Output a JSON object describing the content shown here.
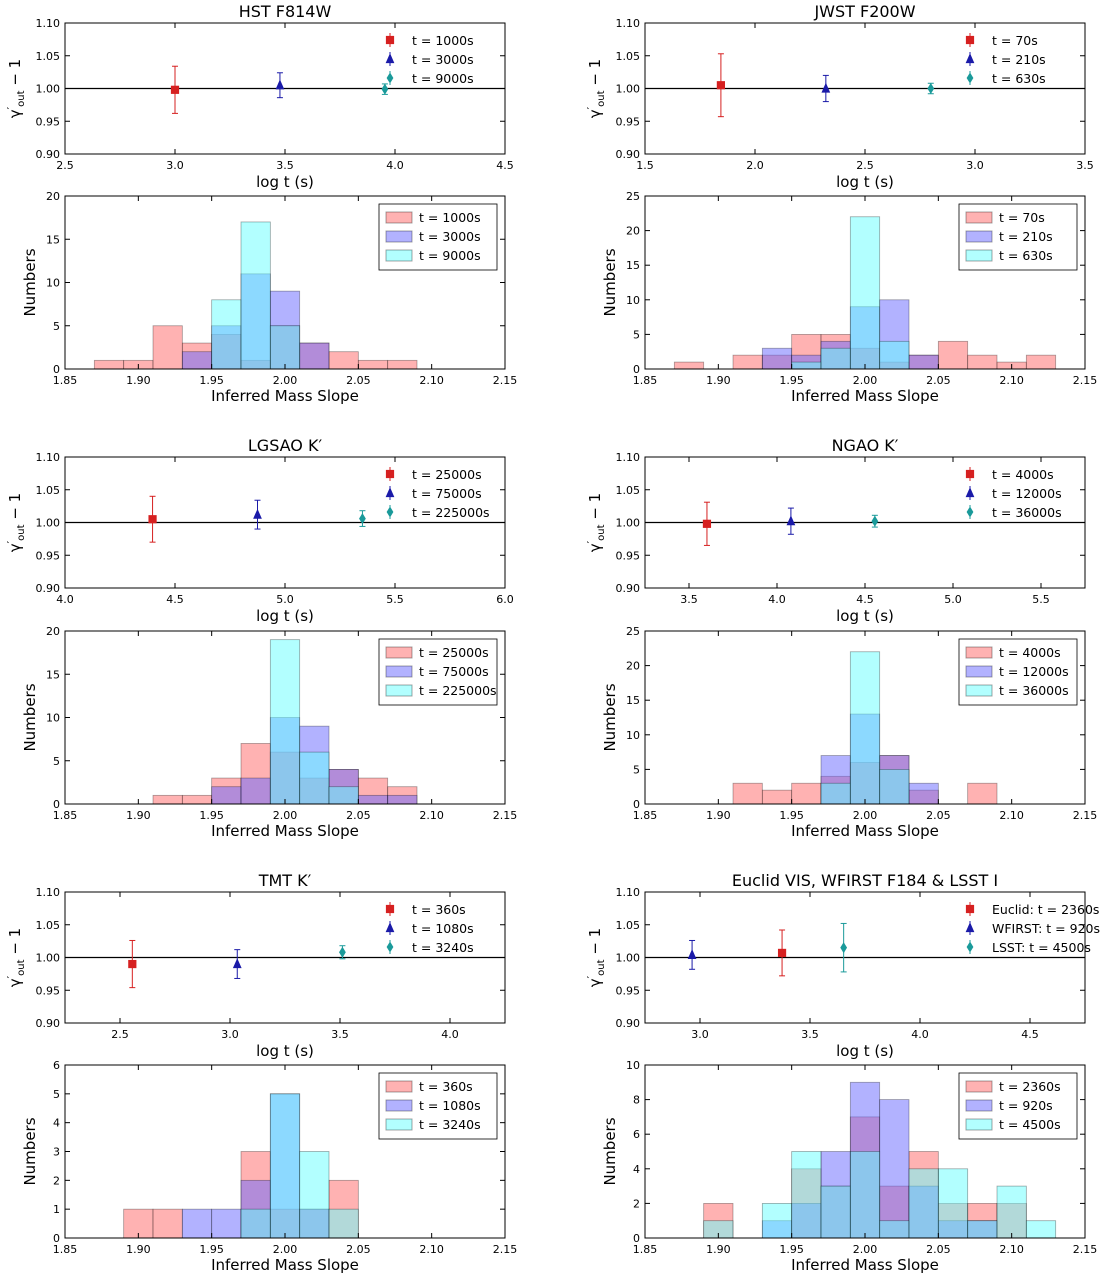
{
  "chart_data": [
    {
      "type": "scatter",
      "title": "HST F814W",
      "xlabel": "log t (s)",
      "ylabel": "γ′out − 1",
      "xlim": [
        2.5,
        4.5
      ],
      "ylim": [
        0.9,
        1.1
      ],
      "xticks": [
        "2.5",
        "3.0",
        "3.5",
        "4.0",
        "4.5"
      ],
      "yticks": [
        "0.90",
        "0.95",
        "1.00",
        "1.05",
        "1.10"
      ],
      "reference_line": 1.0,
      "legend_position": "top-right",
      "series": [
        {
          "label": "t = 1000s",
          "marker": "square",
          "color": "#d62020",
          "x": 3.0,
          "y": 0.998,
          "yerr": 0.036
        },
        {
          "label": "t = 3000s",
          "marker": "triangle",
          "color": "#1a1aa8",
          "x": 3.477,
          "y": 1.005,
          "yerr": 0.019
        },
        {
          "label": "t = 9000s",
          "marker": "diamond",
          "color": "#1a9a9a",
          "x": 3.954,
          "y": 0.999,
          "yerr": 0.008
        }
      ]
    },
    {
      "type": "scatter",
      "title": "JWST F200W",
      "xlabel": "log t (s)",
      "ylabel": "γ′out − 1",
      "xlim": [
        1.5,
        3.5
      ],
      "ylim": [
        0.9,
        1.1
      ],
      "xticks": [
        "1.5",
        "2.0",
        "2.5",
        "3.0",
        "3.5"
      ],
      "yticks": [
        "0.90",
        "0.95",
        "1.00",
        "1.05",
        "1.10"
      ],
      "reference_line": 1.0,
      "legend_position": "top-right",
      "series": [
        {
          "label": "t = 70s",
          "marker": "square",
          "color": "#d62020",
          "x": 1.845,
          "y": 1.005,
          "yerr": 0.048
        },
        {
          "label": "t = 210s",
          "marker": "triangle",
          "color": "#1a1aa8",
          "x": 2.322,
          "y": 1.0,
          "yerr": 0.02
        },
        {
          "label": "t = 630s",
          "marker": "diamond",
          "color": "#1a9a9a",
          "x": 2.799,
          "y": 1.0,
          "yerr": 0.008
        }
      ]
    },
    {
      "type": "bar",
      "xlabel": "Inferred Mass Slope",
      "ylabel": "Numbers",
      "xlim": [
        1.85,
        2.15
      ],
      "ylim": [
        0,
        20
      ],
      "xticks": [
        "1.85",
        "1.90",
        "1.95",
        "2.00",
        "2.05",
        "2.10",
        "2.15"
      ],
      "yticks": [
        "0",
        "5",
        "10",
        "15",
        "20"
      ],
      "bin_edges": [
        1.85,
        1.87,
        1.89,
        1.91,
        1.93,
        1.95,
        1.97,
        1.99,
        2.01,
        2.03,
        2.05,
        2.07,
        2.09,
        2.11,
        2.13,
        2.15
      ],
      "legend_position": "top-right",
      "series": [
        {
          "name": "t = 1000s",
          "color": "#ff6666",
          "values": [
            0,
            1,
            1,
            5,
            3,
            4,
            1,
            5,
            3,
            2,
            1,
            1,
            0,
            0,
            0
          ]
        },
        {
          "name": "t = 3000s",
          "color": "#6666ff",
          "values": [
            0,
            0,
            0,
            0,
            2,
            5,
            11,
            9,
            3,
            0,
            0,
            0,
            0,
            0,
            0
          ]
        },
        {
          "name": "t = 9000s",
          "color": "#66ffff",
          "values": [
            0,
            0,
            0,
            0,
            0,
            8,
            17,
            5,
            0,
            0,
            0,
            0,
            0,
            0,
            0
          ]
        }
      ]
    },
    {
      "type": "bar",
      "xlabel": "Inferred Mass Slope",
      "ylabel": "Numbers",
      "xlim": [
        1.85,
        2.15
      ],
      "ylim": [
        0,
        25
      ],
      "xticks": [
        "1.85",
        "1.90",
        "1.95",
        "2.00",
        "2.05",
        "2.10",
        "2.15"
      ],
      "yticks": [
        "0",
        "5",
        "10",
        "15",
        "20",
        "25"
      ],
      "bin_edges": [
        1.85,
        1.87,
        1.89,
        1.91,
        1.93,
        1.95,
        1.97,
        1.99,
        2.01,
        2.03,
        2.05,
        2.07,
        2.09,
        2.11,
        2.13,
        2.15
      ],
      "legend_position": "top-right",
      "series": [
        {
          "name": "t = 70s",
          "color": "#ff6666",
          "values": [
            0,
            1,
            0,
            2,
            2,
            5,
            5,
            3,
            1,
            2,
            4,
            2,
            1,
            2,
            0
          ]
        },
        {
          "name": "t = 210s",
          "color": "#6666ff",
          "values": [
            0,
            0,
            0,
            0,
            3,
            2,
            4,
            9,
            10,
            2,
            0,
            0,
            0,
            0,
            0
          ]
        },
        {
          "name": "t = 630s",
          "color": "#66ffff",
          "values": [
            0,
            0,
            0,
            0,
            0,
            1,
            3,
            22,
            4,
            0,
            0,
            0,
            0,
            0,
            0
          ]
        }
      ]
    },
    {
      "type": "scatter",
      "title": "LGSAO K′",
      "xlabel": "log t (s)",
      "ylabel": "γ′out − 1",
      "xlim": [
        4.0,
        6.0
      ],
      "ylim": [
        0.9,
        1.1
      ],
      "xticks": [
        "4.0",
        "4.5",
        "5.0",
        "5.5",
        "6.0"
      ],
      "yticks": [
        "0.90",
        "0.95",
        "1.00",
        "1.05",
        "1.10"
      ],
      "reference_line": 1.0,
      "legend_position": "top-right",
      "series": [
        {
          "label": "t = 25000s",
          "marker": "square",
          "color": "#d62020",
          "x": 4.398,
          "y": 1.005,
          "yerr": 0.035
        },
        {
          "label": "t = 75000s",
          "marker": "triangle",
          "color": "#1a1aa8",
          "x": 4.875,
          "y": 1.012,
          "yerr": 0.022
        },
        {
          "label": "t = 225000s",
          "marker": "diamond",
          "color": "#1a9a9a",
          "x": 5.352,
          "y": 1.006,
          "yerr": 0.012
        }
      ]
    },
    {
      "type": "scatter",
      "title": "NGAO K′",
      "xlabel": "log t (s)",
      "ylabel": "γ′out − 1",
      "xlim": [
        3.25,
        5.75
      ],
      "ylim": [
        0.9,
        1.1
      ],
      "xticks": [
        "3.5",
        "4.0",
        "4.5",
        "5.0",
        "5.5"
      ],
      "yticks": [
        "0.90",
        "0.95",
        "1.00",
        "1.05",
        "1.10"
      ],
      "reference_line": 1.0,
      "legend_position": "top-right",
      "series": [
        {
          "label": "t = 4000s",
          "marker": "square",
          "color": "#d62020",
          "x": 3.602,
          "y": 0.998,
          "yerr": 0.033
        },
        {
          "label": "t = 12000s",
          "marker": "triangle",
          "color": "#1a1aa8",
          "x": 4.079,
          "y": 1.002,
          "yerr": 0.02
        },
        {
          "label": "t = 36000s",
          "marker": "diamond",
          "color": "#1a9a9a",
          "x": 4.556,
          "y": 1.002,
          "yerr": 0.009
        }
      ]
    },
    {
      "type": "bar",
      "xlabel": "Inferred Mass Slope",
      "ylabel": "Numbers",
      "xlim": [
        1.85,
        2.15
      ],
      "ylim": [
        0,
        20
      ],
      "xticks": [
        "1.85",
        "1.90",
        "1.95",
        "2.00",
        "2.05",
        "2.10",
        "2.15"
      ],
      "yticks": [
        "0",
        "5",
        "10",
        "15",
        "20"
      ],
      "bin_edges": [
        1.85,
        1.87,
        1.89,
        1.91,
        1.93,
        1.95,
        1.97,
        1.99,
        2.01,
        2.03,
        2.05,
        2.07,
        2.09,
        2.11,
        2.13,
        2.15
      ],
      "legend_position": "top-right",
      "series": [
        {
          "name": "t = 25000s",
          "color": "#ff6666",
          "values": [
            0,
            0,
            0,
            1,
            1,
            3,
            7,
            6,
            3,
            4,
            3,
            2,
            0,
            0,
            0
          ]
        },
        {
          "name": "t = 75000s",
          "color": "#6666ff",
          "values": [
            0,
            0,
            0,
            0,
            0,
            2,
            3,
            10,
            9,
            4,
            1,
            1,
            0,
            0,
            0
          ]
        },
        {
          "name": "t = 225000s",
          "color": "#66ffff",
          "values": [
            0,
            0,
            0,
            0,
            0,
            0,
            0,
            19,
            6,
            2,
            0,
            0,
            0,
            0,
            0
          ]
        }
      ]
    },
    {
      "type": "bar",
      "xlabel": "Inferred Mass Slope",
      "ylabel": "Numbers",
      "xlim": [
        1.85,
        2.15
      ],
      "ylim": [
        0,
        25
      ],
      "xticks": [
        "1.85",
        "1.90",
        "1.95",
        "2.00",
        "2.05",
        "2.10",
        "2.15"
      ],
      "yticks": [
        "0",
        "5",
        "10",
        "15",
        "20",
        "25"
      ],
      "bin_edges": [
        1.85,
        1.87,
        1.89,
        1.91,
        1.93,
        1.95,
        1.97,
        1.99,
        2.01,
        2.03,
        2.05,
        2.07,
        2.09,
        2.11,
        2.13,
        2.15
      ],
      "legend_position": "top-right",
      "series": [
        {
          "name": "t = 4000s",
          "color": "#ff6666",
          "values": [
            0,
            0,
            0,
            3,
            2,
            3,
            4,
            6,
            7,
            2,
            0,
            3,
            0,
            0,
            0
          ]
        },
        {
          "name": "t = 12000s",
          "color": "#6666ff",
          "values": [
            0,
            0,
            0,
            0,
            0,
            0,
            7,
            13,
            7,
            3,
            0,
            0,
            0,
            0,
            0
          ]
        },
        {
          "name": "t = 36000s",
          "color": "#66ffff",
          "values": [
            0,
            0,
            0,
            0,
            0,
            0,
            3,
            22,
            5,
            0,
            0,
            0,
            0,
            0,
            0
          ]
        }
      ]
    },
    {
      "type": "scatter",
      "title": "TMT K′",
      "xlabel": "log t (s)",
      "ylabel": "γ′out − 1",
      "xlim": [
        2.25,
        4.25
      ],
      "ylim": [
        0.9,
        1.1
      ],
      "xticks": [
        "2.5",
        "3.0",
        "3.5",
        "4.0"
      ],
      "yticks": [
        "0.90",
        "0.95",
        "1.00",
        "1.05",
        "1.10"
      ],
      "reference_line": 1.0,
      "legend_position": "top-right",
      "series": [
        {
          "label": "t = 360s",
          "marker": "square",
          "color": "#d62020",
          "x": 2.556,
          "y": 0.99,
          "yerr": 0.036
        },
        {
          "label": "t = 1080s",
          "marker": "triangle",
          "color": "#1a1aa8",
          "x": 3.033,
          "y": 0.99,
          "yerr": 0.022
        },
        {
          "label": "t = 3240s",
          "marker": "diamond",
          "color": "#1a9a9a",
          "x": 3.511,
          "y": 1.008,
          "yerr": 0.01
        }
      ]
    },
    {
      "type": "scatter",
      "title": "Euclid VIS, WFIRST F184 & LSST I",
      "xlabel": "log t (s)",
      "ylabel": "γ′out − 1",
      "xlim": [
        2.75,
        4.75
      ],
      "ylim": [
        0.9,
        1.1
      ],
      "xticks": [
        "3.0",
        "3.5",
        "4.0",
        "4.5"
      ],
      "yticks": [
        "0.90",
        "0.95",
        "1.00",
        "1.05",
        "1.10"
      ],
      "reference_line": 1.0,
      "legend_position": "top-right",
      "series": [
        {
          "label": "Euclid: t = 2360s",
          "marker": "square",
          "color": "#d62020",
          "x": 3.373,
          "y": 1.007,
          "yerr": 0.035
        },
        {
          "label": "WFIRST: t = 920s",
          "marker": "triangle",
          "color": "#1a1aa8",
          "x": 2.964,
          "y": 1.004,
          "yerr": 0.022
        },
        {
          "label": "LSST: t = 4500s",
          "marker": "diamond",
          "color": "#1a9a9a",
          "x": 3.653,
          "y": 1.015,
          "yerr": 0.037
        }
      ]
    },
    {
      "type": "bar",
      "xlabel": "Inferred Mass Slope",
      "ylabel": "Numbers",
      "xlim": [
        1.85,
        2.15
      ],
      "ylim": [
        0,
        6
      ],
      "xticks": [
        "1.85",
        "1.90",
        "1.95",
        "2.00",
        "2.05",
        "2.10",
        "2.15"
      ],
      "yticks": [
        "0",
        "1",
        "2",
        "3",
        "4",
        "5",
        "6"
      ],
      "bin_edges": [
        1.85,
        1.87,
        1.89,
        1.91,
        1.93,
        1.95,
        1.97,
        1.99,
        2.01,
        2.03,
        2.05,
        2.07,
        2.09,
        2.11,
        2.13,
        2.15
      ],
      "legend_position": "top-right",
      "series": [
        {
          "name": "t = 360s",
          "color": "#ff6666",
          "values": [
            0,
            0,
            1,
            1,
            0,
            0,
            3,
            1,
            1,
            2,
            0,
            0,
            0,
            0,
            0
          ]
        },
        {
          "name": "t = 1080s",
          "color": "#6666ff",
          "values": [
            0,
            0,
            0,
            0,
            1,
            1,
            2,
            5,
            1,
            0,
            0,
            0,
            0,
            0,
            0
          ]
        },
        {
          "name": "t = 3240s",
          "color": "#66ffff",
          "values": [
            0,
            0,
            0,
            0,
            0,
            0,
            1,
            5,
            3,
            1,
            0,
            0,
            0,
            0,
            0
          ]
        }
      ]
    },
    {
      "type": "bar",
      "xlabel": "Inferred Mass Slope",
      "ylabel": "Numbers",
      "xlim": [
        1.85,
        2.15
      ],
      "ylim": [
        0,
        10
      ],
      "xticks": [
        "1.85",
        "1.90",
        "1.95",
        "2.00",
        "2.05",
        "2.10",
        "2.15"
      ],
      "yticks": [
        "0",
        "2",
        "4",
        "6",
        "8",
        "10"
      ],
      "bin_edges": [
        1.85,
        1.87,
        1.89,
        1.91,
        1.93,
        1.95,
        1.97,
        1.99,
        2.01,
        2.03,
        2.05,
        2.07,
        2.09,
        2.11,
        2.13,
        2.15
      ],
      "legend_position": "top-right",
      "series": [
        {
          "name": "t = 2360s",
          "color": "#ff6666",
          "values": [
            0,
            0,
            2,
            0,
            0,
            4,
            3,
            7,
            3,
            5,
            2,
            2,
            2,
            0,
            0
          ]
        },
        {
          "name": "t = 920s",
          "color": "#6666ff",
          "values": [
            0,
            0,
            0,
            0,
            1,
            2,
            5,
            9,
            8,
            3,
            1,
            1,
            0,
            0,
            0
          ]
        },
        {
          "name": "t = 4500s",
          "color": "#66ffff",
          "values": [
            0,
            0,
            1,
            0,
            2,
            5,
            3,
            5,
            1,
            4,
            4,
            1,
            3,
            1,
            0
          ]
        }
      ]
    }
  ]
}
